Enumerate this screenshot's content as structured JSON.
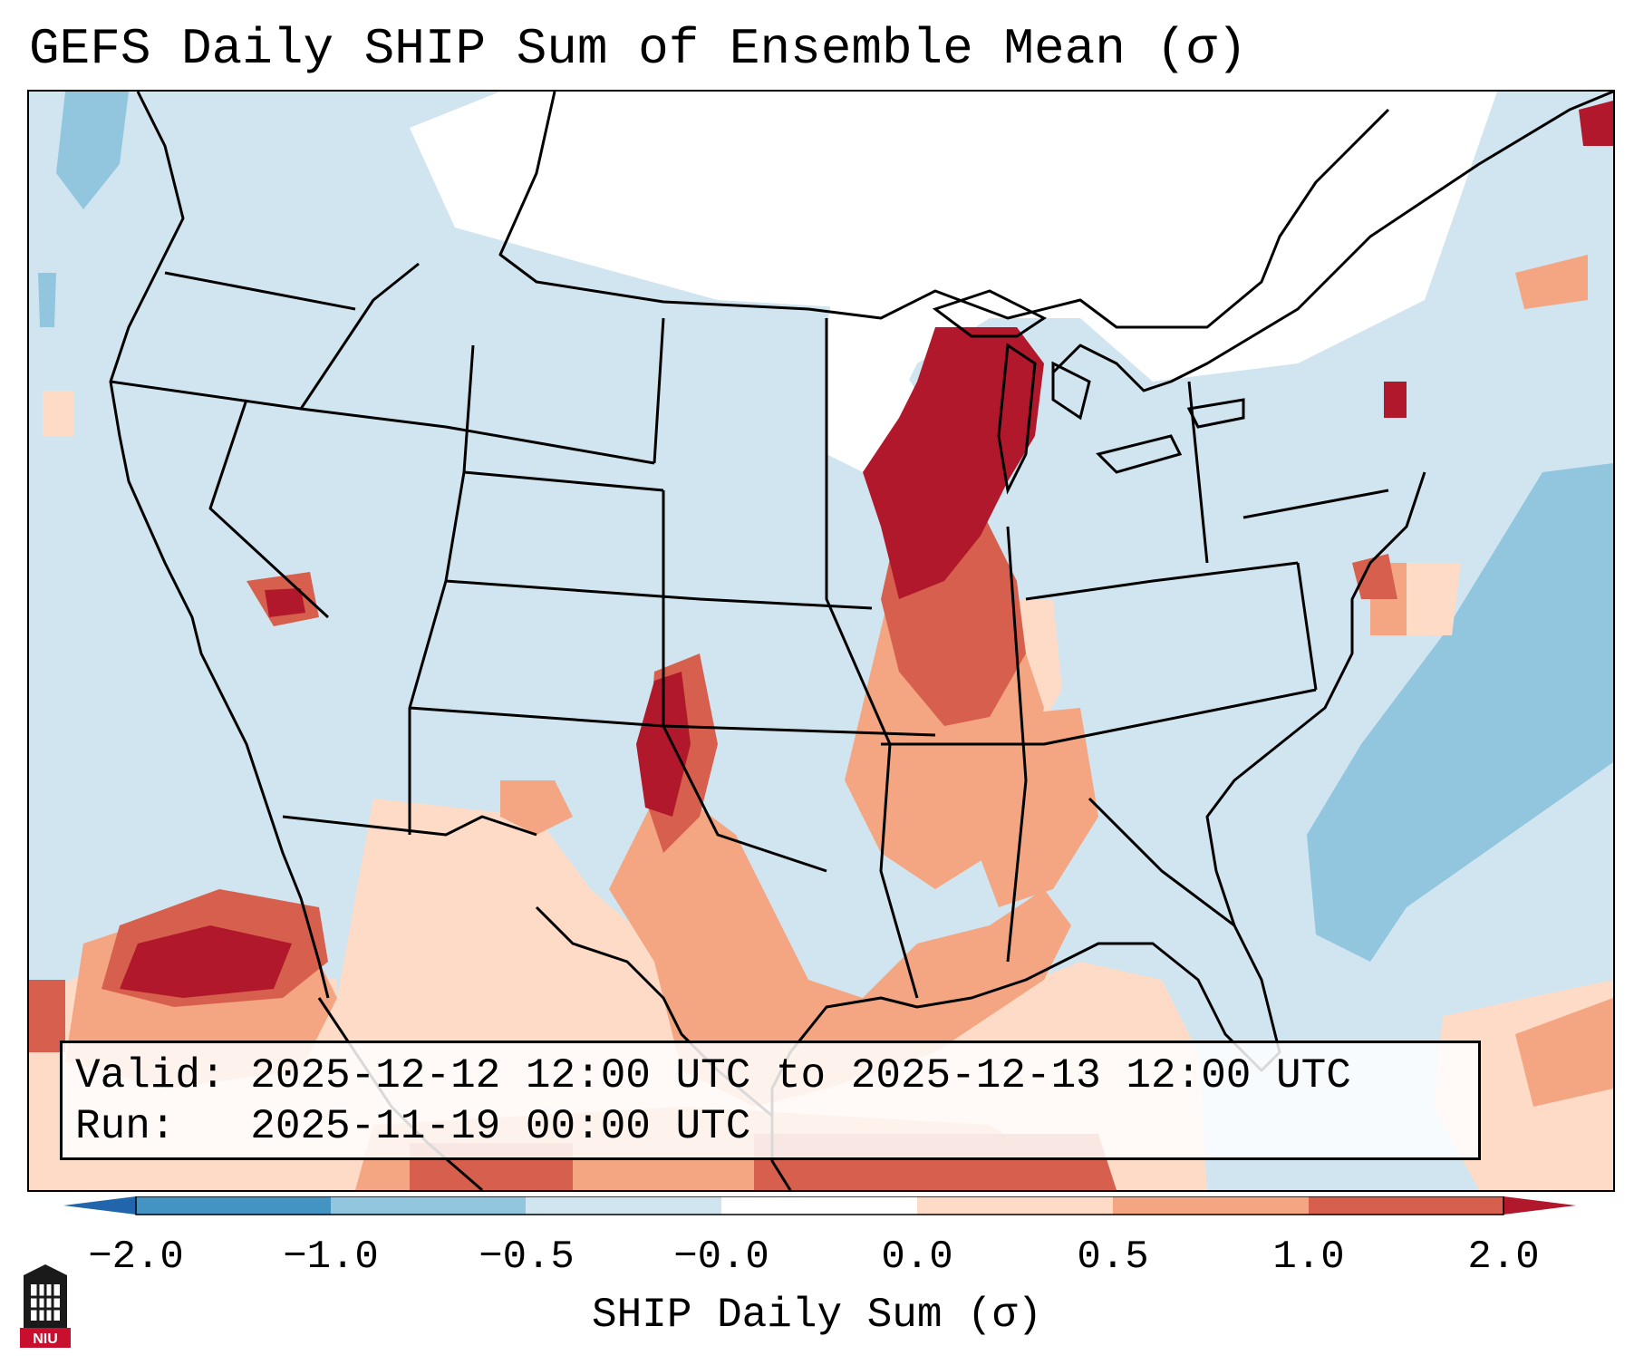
{
  "title": "GEFS Daily SHIP Sum of Ensemble Mean (σ)",
  "info": {
    "valid_line": "Valid: 2025-12-12 12:00 UTC to 2025-12-13 12:00 UTC",
    "run_line": "Run:   2025-11-19 00:00 UTC"
  },
  "colorbar": {
    "label": "SHIP Daily Sum (σ)",
    "ticks": [
      "−2.0",
      "−1.0",
      "−0.5",
      "−0.0",
      "0.0",
      "0.5",
      "1.0",
      "2.0"
    ],
    "colors": [
      "#2166ac",
      "#4393c3",
      "#92c5de",
      "#d1e5f0",
      "#ffffff",
      "#fddbc7",
      "#f4a582",
      "#d6604d",
      "#b2182b"
    ]
  },
  "logo": {
    "text": "NIU",
    "name": "niu-logo"
  }
}
